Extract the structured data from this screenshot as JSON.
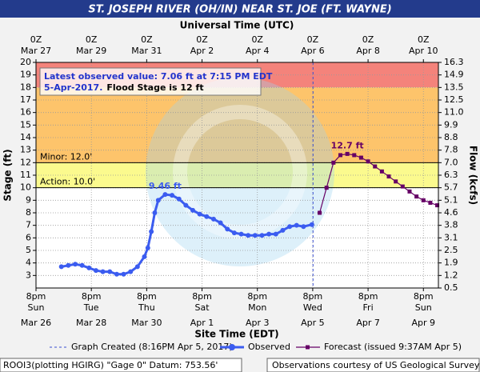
{
  "chart_data": {
    "type": "line",
    "title": "ST. JOSEPH RIVER (OH/IN) NEAR ST. JOE (FT. WAYNE)",
    "top_axis_label": "Universal Time (UTC)",
    "x_label": "Site Time (EDT)",
    "y_label": "Stage (ft)",
    "y2_label": "Flow (kcfs)",
    "xlim": [
      "2017-03-26T20:00",
      "2017-04-10T09:00"
    ],
    "xticks": [
      {
        "value": "2017-03-26T20:00",
        "label": "8pm",
        "weekday": "Sun",
        "date": "Mar 26",
        "utc_label": "0Z",
        "utc_date": "Mar 27"
      },
      {
        "value": "2017-03-28T20:00",
        "label": "8pm",
        "weekday": "Tue",
        "date": "Mar 28",
        "utc_label": "0Z",
        "utc_date": "Mar 29"
      },
      {
        "value": "2017-03-30T20:00",
        "label": "8pm",
        "weekday": "Thu",
        "date": "Mar 30",
        "utc_label": "0Z",
        "utc_date": "Mar 31"
      },
      {
        "value": "2017-04-01T20:00",
        "label": "8pm",
        "weekday": "Sat",
        "date": "Apr 1",
        "utc_label": "0Z",
        "utc_date": "Apr 2"
      },
      {
        "value": "2017-04-03T20:00",
        "label": "8pm",
        "weekday": "Mon",
        "date": "Apr 3",
        "utc_label": "0Z",
        "utc_date": "Apr 4"
      },
      {
        "value": "2017-04-05T20:00",
        "label": "8pm",
        "weekday": "Wed",
        "date": "Apr 5",
        "utc_label": "0Z",
        "utc_date": "Apr 6"
      },
      {
        "value": "2017-04-07T20:00",
        "label": "8pm",
        "weekday": "Fri",
        "date": "Apr 7",
        "utc_label": "0Z",
        "utc_date": "Apr 8"
      },
      {
        "value": "2017-04-09T20:00",
        "label": "8pm",
        "weekday": "Sun",
        "date": "Apr 9",
        "utc_label": "0Z",
        "utc_date": "Apr 10"
      }
    ],
    "ylim": [
      2,
      20
    ],
    "yticks": [
      3,
      4,
      5,
      6,
      7,
      8,
      9,
      10,
      11,
      12,
      13,
      14,
      15,
      16,
      17,
      18,
      19,
      20
    ],
    "flow_ticks": [
      {
        "stage": 20,
        "flow": "16.3"
      },
      {
        "stage": 19,
        "flow": "14.9"
      },
      {
        "stage": 18,
        "flow": "13.5"
      },
      {
        "stage": 17,
        "flow": "12.5"
      },
      {
        "stage": 16,
        "flow": "11.0"
      },
      {
        "stage": 15,
        "flow": "9.9"
      },
      {
        "stage": 14,
        "flow": "8.8"
      },
      {
        "stage": 13,
        "flow": "7.8"
      },
      {
        "stage": 12,
        "flow": "7.0"
      },
      {
        "stage": 11,
        "flow": "6.3"
      },
      {
        "stage": 10,
        "flow": "5.7"
      },
      {
        "stage": 9,
        "flow": "5.1"
      },
      {
        "stage": 8,
        "flow": "4.6"
      },
      {
        "stage": 7,
        "flow": "3.8"
      },
      {
        "stage": 6,
        "flow": "3.1"
      },
      {
        "stage": 5,
        "flow": "2.5"
      },
      {
        "stage": 4,
        "flow": "1.9"
      },
      {
        "stage": 3,
        "flow": "1.2"
      },
      {
        "stage": 2,
        "flow": "0.5"
      }
    ],
    "grid": true,
    "bands": [
      {
        "from": 18,
        "to": 20,
        "color": "#f4837b"
      },
      {
        "from": 12,
        "to": 18,
        "color": "#fdc46b"
      },
      {
        "from": 10,
        "to": 12,
        "color": "#fbfa8e"
      }
    ],
    "thresholds": [
      {
        "value": 12,
        "label": "Minor: 12.0'"
      },
      {
        "value": 10,
        "label": "Action: 10.0'"
      }
    ],
    "graph_created": {
      "x": "2017-04-05T20:16",
      "label": "Graph Created (8:16PM Apr 5, 2017)",
      "color": "#3a4fd0"
    },
    "series": [
      {
        "name": "Observed",
        "color": "#3b5cf0",
        "marker": "circle",
        "x": [
          "2017-03-27T18:00",
          "2017-03-28T00:00",
          "2017-03-28T06:00",
          "2017-03-28T12:00",
          "2017-03-28T18:00",
          "2017-03-29T00:00",
          "2017-03-29T06:00",
          "2017-03-29T12:00",
          "2017-03-29T18:00",
          "2017-03-30T00:00",
          "2017-03-30T06:00",
          "2017-03-30T12:00",
          "2017-03-30T18:00",
          "2017-03-30T21:00",
          "2017-03-31T00:00",
          "2017-03-31T03:00",
          "2017-03-31T06:00",
          "2017-03-31T12:00",
          "2017-03-31T18:00",
          "2017-04-01T00:00",
          "2017-04-01T06:00",
          "2017-04-01T12:00",
          "2017-04-01T18:00",
          "2017-04-02T00:00",
          "2017-04-02T06:00",
          "2017-04-02T12:00",
          "2017-04-02T18:00",
          "2017-04-03T00:00",
          "2017-04-03T06:00",
          "2017-04-03T12:00",
          "2017-04-03T18:00",
          "2017-04-04T00:00",
          "2017-04-04T06:00",
          "2017-04-04T12:00",
          "2017-04-04T18:00",
          "2017-04-05T00:00",
          "2017-04-05T06:00",
          "2017-04-05T12:00",
          "2017-04-05T19:15"
        ],
        "values": [
          3.7,
          3.8,
          3.9,
          3.8,
          3.6,
          3.4,
          3.3,
          3.3,
          3.1,
          3.1,
          3.3,
          3.7,
          4.5,
          5.2,
          6.5,
          8.0,
          9.0,
          9.46,
          9.4,
          9.1,
          8.6,
          8.2,
          7.9,
          7.7,
          7.5,
          7.2,
          6.7,
          6.4,
          6.3,
          6.2,
          6.2,
          6.2,
          6.3,
          6.3,
          6.6,
          6.9,
          7.0,
          6.9,
          7.06
        ]
      },
      {
        "name": "Forecast (issued 9:37AM Apr 5)",
        "color": "#660066",
        "marker": "square",
        "x": [
          "2017-04-06T02:00",
          "2017-04-06T08:00",
          "2017-04-06T14:00",
          "2017-04-06T20:00",
          "2017-04-07T02:00",
          "2017-04-07T08:00",
          "2017-04-07T14:00",
          "2017-04-07T20:00",
          "2017-04-08T02:00",
          "2017-04-08T08:00",
          "2017-04-08T14:00",
          "2017-04-08T20:00",
          "2017-04-09T02:00",
          "2017-04-09T08:00",
          "2017-04-09T14:00",
          "2017-04-09T20:00",
          "2017-04-10T02:00",
          "2017-04-10T08:00"
        ],
        "values": [
          8.0,
          10.0,
          12.0,
          12.6,
          12.7,
          12.6,
          12.4,
          12.1,
          11.7,
          11.3,
          10.9,
          10.5,
          10.1,
          9.7,
          9.3,
          9.0,
          8.8,
          8.6
        ]
      }
    ],
    "annotations": [
      {
        "text": "9.46 ft",
        "x": "2017-03-31T12:00",
        "y": 9.46,
        "color": "#3b5cf0"
      },
      {
        "text": "12.7 ft",
        "x": "2017-04-07T02:00",
        "y": 12.7,
        "color": "#660066"
      }
    ],
    "info_box": {
      "line1": "Latest observed value: 7.06 ft at 7:15 PM EDT",
      "line2_date": "5-Apr-2017.",
      "line2_flood": "Flood Stage is 12 ft"
    },
    "footer": {
      "left": "ROOI3(plotting HGIRG) \"Gage 0\" Datum: 753.56'",
      "right": "Observations courtesy of US Geological Survey"
    }
  }
}
